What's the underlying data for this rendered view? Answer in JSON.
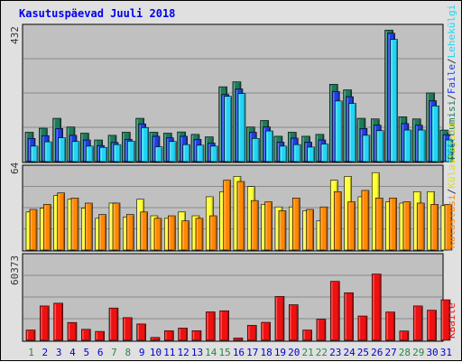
{
  "title": "Kasutuspäevad Juuli 2018",
  "colors": {
    "weekend_tick": "#228844",
    "weekday_tick": "#0000cc",
    "hits": "#1e7a5a",
    "files": "#1f3fe0",
    "pages": "#22d4f4",
    "visits": "#ff8800",
    "sites": "#ffff33",
    "kbytes": "#ee1111"
  },
  "panel_labels": {
    "top_max": "432",
    "middle_max": "64",
    "bottom_max": "60373"
  },
  "right_labels": {
    "top": [
      "Pöördumisi",
      "/",
      "Faile",
      "/",
      "Lehekülgi"
    ],
    "middle": [
      "Külastusi",
      "/",
      "Külastajaid"
    ],
    "bottom": [
      "KBaite"
    ]
  },
  "chart_data": [
    {
      "type": "bar",
      "title": "Pöördumisi / Faile / Lehekülgi",
      "categories": [
        "1",
        "2",
        "3",
        "4",
        "5",
        "6",
        "7",
        "8",
        "9",
        "10",
        "11",
        "12",
        "13",
        "14",
        "15",
        "16",
        "17",
        "18",
        "19",
        "20",
        "21",
        "22",
        "23",
        "24",
        "25",
        "26",
        "27",
        "28",
        "29",
        "30",
        "31"
      ],
      "weekend": [
        1,
        7,
        8,
        14,
        15,
        21,
        22,
        28,
        29
      ],
      "ylim": [
        0,
        432
      ],
      "series": [
        {
          "name": "Pöördumisi",
          "values": [
            95,
            108,
            140,
            112,
            92,
            70,
            85,
            95,
            140,
            95,
            92,
            96,
            88,
            80,
            242,
            258,
            112,
            133,
            82,
            95,
            82,
            88,
            250,
            232,
            140,
            138,
            425,
            145,
            138,
            222,
            102
          ]
        },
        {
          "name": "Faile",
          "values": [
            75,
            84,
            107,
            85,
            70,
            52,
            62,
            72,
            122,
            82,
            77,
            82,
            72,
            60,
            217,
            235,
            95,
            112,
            63,
            76,
            63,
            70,
            227,
            210,
            107,
            118,
            415,
            123,
            118,
            197,
            87
          ]
        },
        {
          "name": "Lehekülgi",
          "values": [
            50,
            64,
            77,
            65,
            50,
            46,
            55,
            66,
            110,
            48,
            65,
            55,
            53,
            50,
            211,
            220,
            75,
            99,
            50,
            55,
            47,
            57,
            196,
            188,
            85,
            100,
            395,
            102,
            102,
            180,
            70
          ]
        }
      ]
    },
    {
      "type": "bar",
      "title": "Külastusi / Külastajaid",
      "categories": [
        "1",
        "2",
        "3",
        "4",
        "5",
        "6",
        "7",
        "8",
        "9",
        "10",
        "11",
        "12",
        "13",
        "14",
        "15",
        "16",
        "17",
        "18",
        "19",
        "20",
        "21",
        "22",
        "23",
        "24",
        "25",
        "26",
        "27",
        "28",
        "29",
        "30",
        "31"
      ],
      "weekend": [
        1,
        7,
        8,
        14,
        15,
        21,
        22,
        28,
        29
      ],
      "ylim": [
        0,
        64
      ],
      "series": [
        {
          "name": "Külastusi",
          "values": [
            32,
            36,
            45,
            41,
            37,
            28,
            37,
            28,
            30,
            25,
            27,
            23,
            25,
            27,
            55,
            54,
            39,
            38,
            31,
            41,
            32,
            34,
            46,
            38,
            47,
            41,
            41,
            38,
            37,
            36,
            36
          ]
        },
        {
          "name": "Külastajaid",
          "values": [
            30,
            33,
            43,
            40,
            33,
            25,
            37,
            26,
            40,
            27,
            25,
            30,
            27,
            42,
            46,
            58,
            50,
            36,
            34,
            34,
            31,
            23,
            55,
            58,
            42,
            61,
            38,
            37,
            46,
            46,
            35
          ]
        }
      ]
    },
    {
      "type": "bar",
      "title": "KBaite",
      "categories": [
        "1",
        "2",
        "3",
        "4",
        "5",
        "6",
        "7",
        "8",
        "9",
        "10",
        "11",
        "12",
        "13",
        "14",
        "15",
        "16",
        "17",
        "18",
        "19",
        "20",
        "21",
        "22",
        "23",
        "24",
        "25",
        "26",
        "27",
        "28",
        "29",
        "30",
        "31"
      ],
      "weekend": [
        1,
        7,
        8,
        14,
        15,
        21,
        22,
        28,
        29
      ],
      "ylim": [
        0,
        60373
      ],
      "series": [
        {
          "name": "KBaite",
          "values": [
            7500,
            25000,
            27000,
            13000,
            8000,
            6500,
            23500,
            16500,
            11900,
            2100,
            7000,
            8900,
            7000,
            20700,
            21500,
            1700,
            10900,
            13100,
            31900,
            25900,
            7500,
            15400,
            42900,
            34600,
            17700,
            48200,
            20600,
            6800,
            25000,
            21900,
            29500
          ]
        }
      ]
    }
  ]
}
